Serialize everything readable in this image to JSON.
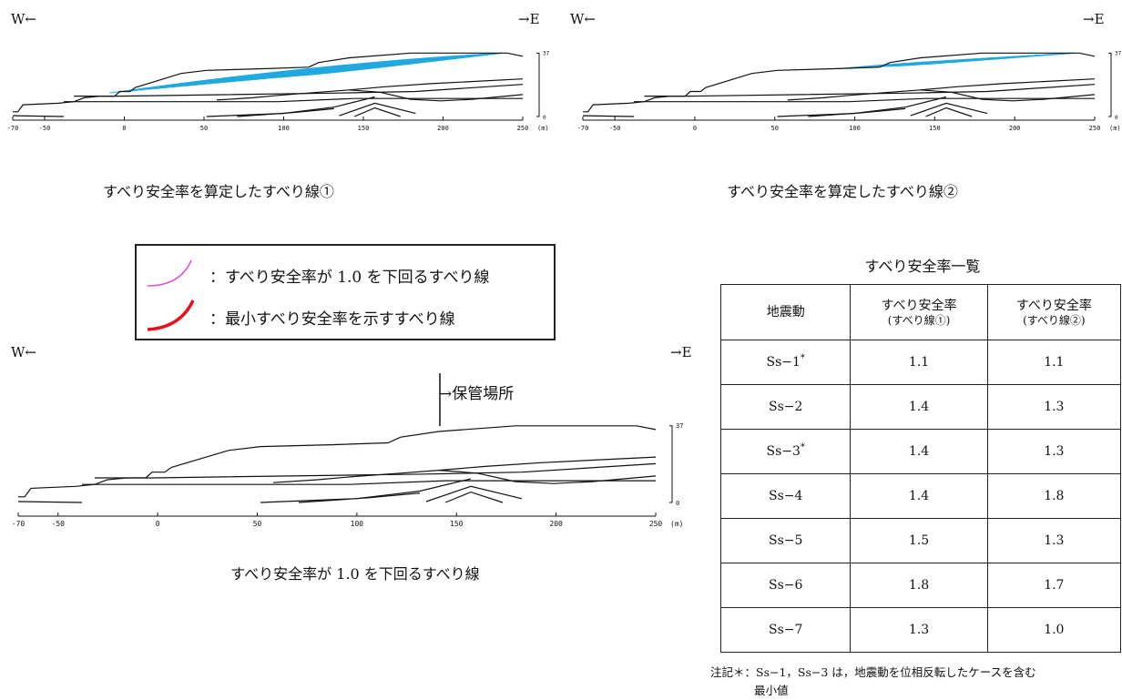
{
  "colors": {
    "slip": "#21a9e1",
    "below_one": "#e83cd8",
    "minimum": "#e8101a",
    "line": "#111111"
  },
  "direction": {
    "west": "W←",
    "east": "→E"
  },
  "axis": {
    "x_ticks": [
      "-70",
      "-50",
      "0",
      "50",
      "100",
      "150",
      "200",
      "250"
    ],
    "x_unit": "(m)",
    "y_top": "37",
    "y_bottom": "0"
  },
  "captions": {
    "sec1": "すべり安全率を算定したすべり線①",
    "sec2": "すべり安全率を算定したすべり線②",
    "sec3": "すべり安全率が 1.0 を下回るすべり線"
  },
  "legend": {
    "below_one": "：すべり安全率が 1.0 を下回るすべり線",
    "minimum": "：最小すべり安全率を示すすべり線",
    "below_one_icon": "magenta-arc-icon",
    "minimum_icon": "red-arc-icon"
  },
  "annotation": {
    "storage": "→保管場所"
  },
  "table": {
    "title": "すべり安全率一覧",
    "headers": {
      "motion": "地震動",
      "col1_main": "すべり安全率",
      "col1_sub": "(すべり線①)",
      "col2_main": "すべり安全率",
      "col2_sub": "(すべり線②)"
    },
    "rows": [
      {
        "name": "Ss−1",
        "mark": "*",
        "v1": "1.1",
        "v2": "1.1"
      },
      {
        "name": "Ss−2",
        "mark": "",
        "v1": "1.4",
        "v2": "1.3"
      },
      {
        "name": "Ss−3",
        "mark": "*",
        "v1": "1.4",
        "v2": "1.3"
      },
      {
        "name": "Ss−4",
        "mark": "",
        "v1": "1.4",
        "v2": "1.8"
      },
      {
        "name": "Ss−5",
        "mark": "",
        "v1": "1.5",
        "v2": "1.3"
      },
      {
        "name": "Ss−6",
        "mark": "",
        "v1": "1.8",
        "v2": "1.7"
      },
      {
        "name": "Ss−7",
        "mark": "",
        "v1": "1.3",
        "v2": "1.0"
      }
    ]
  },
  "note": {
    "line1": "注記＊：Ss−1，Ss−3 は，地震動を位相反転したケースを含む",
    "line2": "最小値"
  }
}
